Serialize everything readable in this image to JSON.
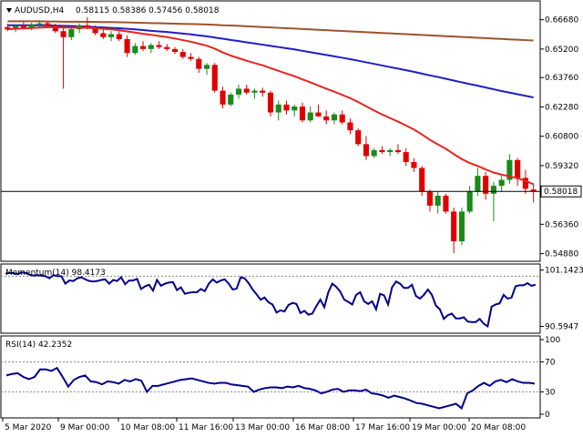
{
  "header": {
    "symbol": "AUDUSD,H4",
    "ohlc": "0.58115 0.58386 0.57456 0.58018"
  },
  "colors": {
    "bull": "#1a8a1a",
    "bear": "#e00000",
    "ema_fast": "#e8241e",
    "ema_mid": "#1e1ec8",
    "ema_slow": "#a0522d",
    "oscillator": "#00008b",
    "grid": "#888888"
  },
  "chart_data": [
    {
      "type": "candlestick",
      "title": "AUDUSD,H4",
      "ohlc_text": "0.58115 0.58386 0.57456 0.58018",
      "current_price": 0.58018,
      "current_price_label": "0.58018",
      "ylim": [
        0.5463,
        0.6749
      ],
      "ytick_labels": [
        "0.66680",
        "0.65200",
        "0.63760",
        "0.62280",
        "0.60800",
        "0.59320",
        "0.57880",
        "0.56360",
        "0.54880"
      ],
      "ytick_values": [
        0.6668,
        0.652,
        0.6376,
        0.6228,
        0.608,
        0.5932,
        0.5788,
        0.5636,
        0.5488
      ],
      "x_labels": [
        "5 Mar 2020",
        "9 Mar 00:00",
        "10 Mar 08:00",
        "11 Mar 16:00",
        "13 Mar 00:00",
        "16 Mar 08:00",
        "17 Mar 16:00",
        "19 Mar 00:00",
        "20 Mar 08:00"
      ],
      "candles": [
        [
          0.6631,
          0.6648,
          0.661,
          0.6618
        ],
        [
          0.6618,
          0.6645,
          0.6605,
          0.6635
        ],
        [
          0.6635,
          0.6655,
          0.662,
          0.6628
        ],
        [
          0.6628,
          0.6652,
          0.6615,
          0.6645
        ],
        [
          0.6645,
          0.6665,
          0.663,
          0.665
        ],
        [
          0.665,
          0.666,
          0.6625,
          0.6638
        ],
        [
          0.6638,
          0.6648,
          0.66,
          0.661
        ],
        [
          0.661,
          0.664,
          0.632,
          0.658
        ],
        [
          0.658,
          0.663,
          0.6565,
          0.662
        ],
        [
          0.662,
          0.665,
          0.66,
          0.664
        ],
        [
          0.664,
          0.668,
          0.662,
          0.6625
        ],
        [
          0.6625,
          0.664,
          0.659,
          0.66
        ],
        [
          0.66,
          0.662,
          0.657,
          0.658
        ],
        [
          0.658,
          0.661,
          0.656,
          0.6595
        ],
        [
          0.6595,
          0.661,
          0.656,
          0.657
        ],
        [
          0.657,
          0.659,
          0.648,
          0.65
        ],
        [
          0.65,
          0.655,
          0.649,
          0.6535
        ],
        [
          0.6535,
          0.656,
          0.651,
          0.652
        ],
        [
          0.652,
          0.655,
          0.65,
          0.654
        ],
        [
          0.654,
          0.656,
          0.652,
          0.653
        ],
        [
          0.653,
          0.6545,
          0.651,
          0.652
        ],
        [
          0.652,
          0.653,
          0.6495,
          0.6505
        ],
        [
          0.6505,
          0.652,
          0.647,
          0.648
        ],
        [
          0.648,
          0.65,
          0.646,
          0.647
        ],
        [
          0.647,
          0.648,
          0.64,
          0.642
        ],
        [
          0.642,
          0.645,
          0.639,
          0.644
        ],
        [
          0.644,
          0.645,
          0.63,
          0.631
        ],
        [
          0.631,
          0.633,
          0.622,
          0.624
        ],
        [
          0.624,
          0.63,
          0.623,
          0.629
        ],
        [
          0.629,
          0.634,
          0.627,
          0.632
        ],
        [
          0.632,
          0.634,
          0.629,
          0.63
        ],
        [
          0.63,
          0.632,
          0.627,
          0.631
        ],
        [
          0.631,
          0.6325,
          0.628,
          0.63
        ],
        [
          0.63,
          0.631,
          0.618,
          0.62
        ],
        [
          0.62,
          0.626,
          0.616,
          0.624
        ],
        [
          0.624,
          0.626,
          0.619,
          0.621
        ],
        [
          0.621,
          0.624,
          0.618,
          0.623
        ],
        [
          0.623,
          0.625,
          0.615,
          0.616
        ],
        [
          0.616,
          0.623,
          0.615,
          0.62
        ],
        [
          0.62,
          0.624,
          0.618,
          0.618
        ],
        [
          0.618,
          0.621,
          0.614,
          0.616
        ],
        [
          0.616,
          0.62,
          0.614,
          0.619
        ],
        [
          0.619,
          0.621,
          0.614,
          0.615
        ],
        [
          0.615,
          0.617,
          0.609,
          0.611
        ],
        [
          0.611,
          0.612,
          0.603,
          0.604
        ],
        [
          0.604,
          0.608,
          0.596,
          0.598
        ],
        [
          0.598,
          0.602,
          0.597,
          0.601
        ],
        [
          0.601,
          0.603,
          0.599,
          0.6
        ],
        [
          0.6,
          0.602,
          0.598,
          0.601
        ],
        [
          0.601,
          0.604,
          0.599,
          0.6
        ],
        [
          0.6,
          0.602,
          0.593,
          0.595
        ],
        [
          0.595,
          0.597,
          0.59,
          0.592
        ],
        [
          0.592,
          0.593,
          0.578,
          0.58
        ],
        [
          0.58,
          0.581,
          0.57,
          0.573
        ],
        [
          0.573,
          0.58,
          0.569,
          0.578
        ],
        [
          0.578,
          0.579,
          0.569,
          0.57
        ],
        [
          0.57,
          0.572,
          0.549,
          0.555
        ],
        [
          0.555,
          0.572,
          0.553,
          0.57
        ],
        [
          0.57,
          0.583,
          0.569,
          0.58
        ],
        [
          0.58,
          0.592,
          0.578,
          0.588
        ],
        [
          0.588,
          0.59,
          0.576,
          0.579
        ],
        [
          0.579,
          0.585,
          0.565,
          0.583
        ],
        [
          0.583,
          0.588,
          0.58,
          0.586
        ],
        [
          0.586,
          0.599,
          0.584,
          0.596
        ],
        [
          0.596,
          0.597,
          0.583,
          0.587
        ],
        [
          0.587,
          0.591,
          0.579,
          0.5815
        ],
        [
          0.58115,
          0.58386,
          0.57456,
          0.58018
        ]
      ],
      "ema_fast": [
        0.662,
        0.6622,
        0.6624,
        0.6626,
        0.6628,
        0.663,
        0.663,
        0.6629,
        0.6628,
        0.6628,
        0.6627,
        0.6625,
        0.6622,
        0.6619,
        0.6615,
        0.6609,
        0.6603,
        0.6597,
        0.6592,
        0.6586,
        0.658,
        0.6573,
        0.6565,
        0.6557,
        0.6547,
        0.6537,
        0.6522,
        0.6503,
        0.6487,
        0.6474,
        0.6461,
        0.6449,
        0.6438,
        0.6424,
        0.641,
        0.6396,
        0.6383,
        0.6367,
        0.6352,
        0.6336,
        0.632,
        0.6305,
        0.6289,
        0.6272,
        0.6253,
        0.6231,
        0.621,
        0.619,
        0.6172,
        0.6154,
        0.6134,
        0.6114,
        0.6089,
        0.6062,
        0.6039,
        0.6017,
        0.599,
        0.5965,
        0.5945,
        0.593,
        0.5913,
        0.5897,
        0.5886,
        0.5878,
        0.5868,
        0.5855,
        0.5838
      ],
      "ema_mid": [
        0.664,
        0.664,
        0.664,
        0.664,
        0.664,
        0.664,
        0.6638,
        0.6637,
        0.6636,
        0.6635,
        0.6633,
        0.6631,
        0.6629,
        0.6627,
        0.6625,
        0.6622,
        0.6619,
        0.6616,
        0.6612,
        0.6609,
        0.6606,
        0.6602,
        0.6598,
        0.6594,
        0.6589,
        0.6584,
        0.6578,
        0.6572,
        0.6566,
        0.656,
        0.6554,
        0.6548,
        0.6542,
        0.6536,
        0.653,
        0.6524,
        0.6518,
        0.6511,
        0.6504,
        0.6497,
        0.649,
        0.6483,
        0.6476,
        0.6469,
        0.6461,
        0.6453,
        0.6445,
        0.6437,
        0.6429,
        0.6421,
        0.6413,
        0.6405,
        0.6396,
        0.6387,
        0.6379,
        0.637,
        0.6361,
        0.6352,
        0.6343,
        0.6335,
        0.6326,
        0.6317,
        0.6308,
        0.63,
        0.6292,
        0.6284,
        0.6276
      ],
      "ema_slow": [
        0.666,
        0.666,
        0.666,
        0.666,
        0.666,
        0.6659,
        0.6659,
        0.6658,
        0.6658,
        0.6658,
        0.6657,
        0.6657,
        0.6656,
        0.6656,
        0.6655,
        0.6654,
        0.6653,
        0.6652,
        0.6651,
        0.665,
        0.6649,
        0.6648,
        0.6647,
        0.6646,
        0.6645,
        0.6644,
        0.6642,
        0.664,
        0.6639,
        0.6637,
        0.6635,
        0.6633,
        0.6631,
        0.6629,
        0.6627,
        0.6625,
        0.6623,
        0.6621,
        0.6619,
        0.6617,
        0.6615,
        0.6613,
        0.6611,
        0.6609,
        0.6607,
        0.6605,
        0.6603,
        0.6601,
        0.6599,
        0.6597,
        0.6595,
        0.6593,
        0.6591,
        0.6589,
        0.6587,
        0.6585,
        0.6583,
        0.6581,
        0.6579,
        0.6577,
        0.6575,
        0.6573,
        0.6571,
        0.6569,
        0.6567,
        0.6565,
        0.6563
      ]
    },
    {
      "type": "line",
      "name": "Momentum(14) 98.4173",
      "label": "Momentum(14) 98.4173",
      "ylim": [
        90.0,
        101.6
      ],
      "ytick_labels": [
        "101.1423",
        "90.5947"
      ],
      "ytick_values": [
        101.1423,
        90.5947
      ],
      "reference_level": 100,
      "values": [
        100.5,
        100.6,
        100.6,
        100.4,
        100.7,
        100.6,
        100.3,
        100.1,
        100.2,
        100.1,
        100.0,
        99.6,
        100.2,
        100.0,
        100.0,
        98.6,
        99.2,
        99.1,
        99.6,
        99.8,
        99.4,
        99.1,
        99.0,
        99.1,
        99.3,
        99.4,
        98.6,
        99.3,
        99.1,
        99.8,
        98.5,
        99.2,
        99.2,
        99.5,
        97.6,
        98.1,
        98.4,
        97.3,
        99.3,
        98.2,
        98.6,
        98.8,
        98.9,
        97.4,
        97.9,
        96.7,
        96.9,
        97.0,
        97.0,
        97.6,
        97.2,
        98.6,
        99.4,
        98.8,
        99.2,
        99.4,
        98.6,
        97.5,
        97.7,
        99.8,
        99.6,
        98.7,
        97.5,
        96.6,
        95.6,
        96.0,
        95.1,
        94.7,
        93.2,
        93.6,
        93.4,
        94.6,
        95.0,
        94.8,
        93.1,
        93.5,
        92.8,
        93.0,
        94.4,
        95.6,
        94.2,
        97.0,
        98.6,
        98.0,
        97.1,
        95.6,
        95.2,
        94.7,
        96.5,
        97.0,
        95.3,
        94.8,
        95.3,
        93.8,
        96.7,
        96.4,
        94.7,
        97.9,
        99.0,
        98.6,
        97.8,
        97.8,
        98.4,
        96.3,
        95.8,
        96.5,
        97.5,
        96.5,
        94.5,
        93.8,
        92.0,
        92.7,
        93.0,
        92.1,
        92.1,
        92.3,
        91.5,
        91.4,
        91.4,
        92.0,
        91.1,
        90.6,
        94.3,
        94.7,
        94.9,
        96.5,
        95.8,
        96.0,
        98.1,
        98.3,
        98.3,
        98.7,
        98.2,
        98.4
      ]
    },
    {
      "type": "line",
      "name": "RSI(14) 42.2352",
      "label": "RSI(14) 42.2352",
      "ylim": [
        0,
        100
      ],
      "ytick_labels": [
        "100",
        "70",
        "30",
        "0"
      ],
      "ytick_values": [
        100,
        70,
        30,
        0
      ],
      "levels": [
        70,
        30
      ],
      "values": [
        52,
        54,
        55,
        50,
        47,
        50,
        60,
        60,
        58,
        62,
        50,
        37,
        46,
        50,
        52,
        44,
        43,
        40,
        44,
        43,
        41,
        46,
        44,
        47,
        45,
        30,
        38,
        38,
        40,
        42,
        44,
        46,
        47,
        48,
        46,
        44,
        42,
        41,
        42,
        42,
        40,
        39,
        38,
        37,
        30,
        33,
        35,
        36,
        36,
        35,
        37,
        36,
        38,
        35,
        34,
        32,
        28,
        30,
        33,
        34,
        30,
        32,
        32,
        31,
        33,
        28,
        27,
        25,
        22,
        25,
        23,
        21,
        18,
        15,
        14,
        12,
        10,
        8,
        10,
        12,
        14,
        8,
        28,
        32,
        38,
        42,
        38,
        44,
        46,
        43,
        47,
        44,
        42,
        42,
        41
      ]
    }
  ]
}
